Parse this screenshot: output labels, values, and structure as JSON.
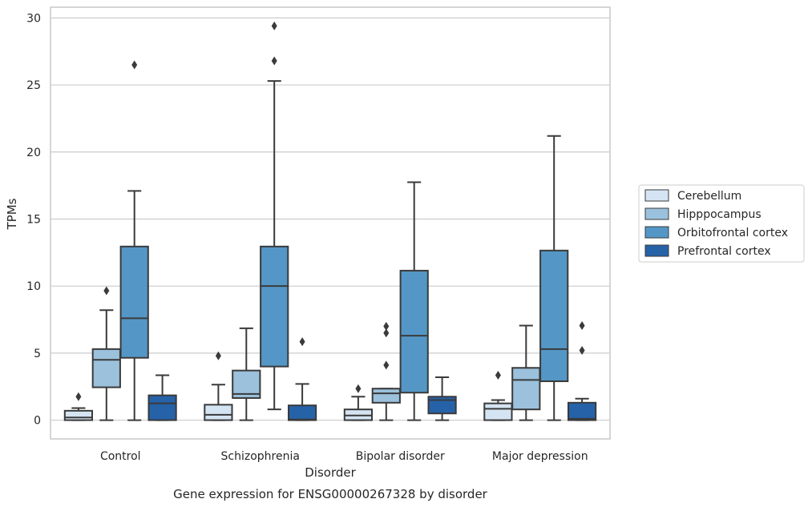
{
  "colors": {
    "background": "#ffffff",
    "grid": "#cccccc",
    "frame": "#cccccc",
    "line": "#3a3a3a",
    "Cerebellum": "#d4e4f2",
    "Hipppocampus": "#9bc1dc",
    "Orbitofrontal cortex": "#5497c6",
    "Prefrontal cortex": "#2662a8"
  },
  "caption": "Gene expression for ENSG00000267328 by disorder",
  "chart_data": {
    "type": "boxplot",
    "title": "",
    "xlabel": "Disorder",
    "ylabel": "TPMs",
    "ylim": [
      -1.4,
      30.8
    ],
    "yticks": [
      0,
      5,
      10,
      15,
      20,
      25,
      30
    ],
    "grid": true,
    "legend_position": "right",
    "categories": [
      "Control",
      "Schizophrenia",
      "Bipolar disorder",
      "Major depression"
    ],
    "series": [
      {
        "name": "Cerebellum",
        "boxes": [
          {
            "whislo": 0,
            "q1": 0,
            "med": 0.2,
            "q3": 0.7,
            "whishi": 0.9,
            "fliers": [
              1.75
            ]
          },
          {
            "whislo": 0,
            "q1": 0,
            "med": 0.4,
            "q3": 1.15,
            "whishi": 2.65,
            "fliers": [
              4.8
            ]
          },
          {
            "whislo": 0,
            "q1": 0,
            "med": 0.35,
            "q3": 0.8,
            "whishi": 1.75,
            "fliers": [
              2.35
            ]
          },
          {
            "whislo": 0,
            "q1": 0,
            "med": 0.85,
            "q3": 1.25,
            "whishi": 1.5,
            "fliers": [
              3.35
            ]
          }
        ]
      },
      {
        "name": "Hipppocampus",
        "boxes": [
          {
            "whislo": 0,
            "q1": 2.45,
            "med": 4.5,
            "q3": 5.3,
            "whishi": 8.2,
            "fliers": [
              9.65
            ]
          },
          {
            "whislo": 0,
            "q1": 1.65,
            "med": 1.95,
            "q3": 3.7,
            "whishi": 6.85,
            "fliers": []
          },
          {
            "whislo": 0,
            "q1": 1.3,
            "med": 2.0,
            "q3": 2.35,
            "whishi": 2.35,
            "fliers": [
              4.1,
              6.5,
              7.0
            ]
          },
          {
            "whislo": 0,
            "q1": 0.8,
            "med": 3.0,
            "q3": 3.9,
            "whishi": 7.05,
            "fliers": []
          }
        ]
      },
      {
        "name": "Orbitofrontal cortex",
        "boxes": [
          {
            "whislo": 0,
            "q1": 4.65,
            "med": 7.6,
            "q3": 12.95,
            "whishi": 17.1,
            "fliers": [
              26.5
            ]
          },
          {
            "whislo": 0.8,
            "q1": 4.0,
            "med": 10.0,
            "q3": 12.95,
            "whishi": 25.3,
            "fliers": [
              26.8,
              29.4
            ]
          },
          {
            "whislo": 0,
            "q1": 2.05,
            "med": 6.3,
            "q3": 11.15,
            "whishi": 17.75,
            "fliers": []
          },
          {
            "whislo": 0,
            "q1": 2.9,
            "med": 5.3,
            "q3": 12.65,
            "whishi": 21.2,
            "fliers": []
          }
        ]
      },
      {
        "name": "Prefrontal cortex",
        "boxes": [
          {
            "whislo": 0,
            "q1": 0,
            "med": 1.25,
            "q3": 1.85,
            "whishi": 3.35,
            "fliers": []
          },
          {
            "whislo": 0,
            "q1": 0,
            "med": 0.05,
            "q3": 1.1,
            "whishi": 2.7,
            "fliers": [
              5.85
            ]
          },
          {
            "whislo": 0,
            "q1": 0.5,
            "med": 1.5,
            "q3": 1.75,
            "whishi": 3.2,
            "fliers": []
          },
          {
            "whislo": 0,
            "q1": 0,
            "med": 0.1,
            "q3": 1.3,
            "whishi": 1.6,
            "fliers": [
              5.2,
              7.05
            ]
          }
        ]
      }
    ]
  }
}
